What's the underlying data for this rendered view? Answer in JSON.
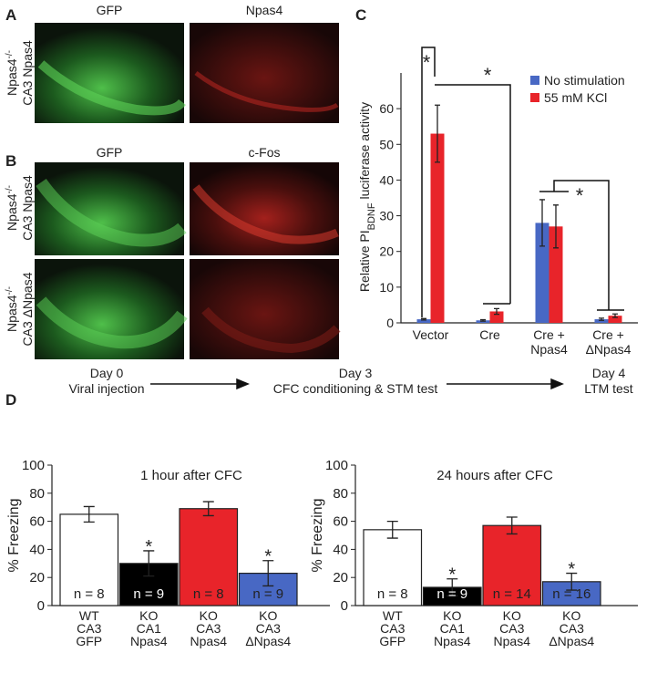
{
  "panel_labels": [
    "A",
    "B",
    "C",
    "D"
  ],
  "images": {
    "a_headers": [
      "GFP",
      "Npas4"
    ],
    "b_headers": [
      "GFP",
      "c-Fos"
    ],
    "rows": [
      {
        "line1": "Npas4",
        "sup": "-/-",
        "line2": "CA3 Npas4"
      },
      {
        "line1": "Npas4",
        "sup": "-/-",
        "line2": "CA3 Npas4"
      },
      {
        "line1": "Npas4",
        "sup": "-/-",
        "line2": "CA3 ΔNpas4"
      }
    ]
  },
  "timeline": [
    {
      "day": "Day 0",
      "event": "Viral injection"
    },
    {
      "day": "Day 3",
      "event": "CFC conditioning & STM test"
    },
    {
      "day": "Day 4",
      "event": "LTM test"
    }
  ],
  "chart_data": [
    {
      "type": "grouped_bar",
      "ylabel": [
        "Relative PI",
        "BDNF",
        " luciferase activity"
      ],
      "categories": [
        "Vector",
        "Cre",
        "Cre +\nNpas4",
        "Cre +\nΔNpas4"
      ],
      "series": [
        {
          "name": "No stimulation",
          "color": "#4868c4",
          "values": [
            1,
            0.7,
            28,
            1
          ],
          "errors": [
            0.2,
            0.2,
            6.5,
            0.3
          ]
        },
        {
          "name": "55 mM KCl",
          "color": "#e8242a",
          "values": [
            53,
            3.2,
            27,
            2
          ],
          "errors": [
            8,
            0.8,
            6,
            0.5
          ]
        }
      ],
      "annotations": [
        "*",
        "*",
        "*"
      ],
      "ylim": [
        0,
        70
      ],
      "yticks": [
        0,
        10,
        20,
        30,
        40,
        50,
        60
      ],
      "legend": "top-right"
    },
    {
      "type": "bar",
      "title": "1 hour after CFC",
      "ylabel": "% Freezing",
      "categories": [
        "WT\nCA3\nGFP",
        "KO\nCA1\nNpas4",
        "KO\nCA3\nNpas4",
        "KO\nCA3\nΔNpas4"
      ],
      "values": [
        65,
        30,
        69,
        23
      ],
      "errors": [
        5.5,
        9,
        5,
        9
      ],
      "colors": [
        "#ffffff",
        "#000000",
        "#e8242a",
        "#4868c4"
      ],
      "n_labels": [
        "n = 8",
        "n = 9",
        "n = 8",
        "n = 9"
      ],
      "sig_labels": [
        null,
        "*",
        null,
        "*"
      ],
      "ylim": [
        0,
        100
      ],
      "yticks": [
        0,
        20,
        40,
        60,
        80,
        100
      ]
    },
    {
      "type": "bar",
      "title": "24 hours after CFC",
      "ylabel": "% Freezing",
      "categories": [
        "WT\nCA3\nGFP",
        "KO\nCA1\nNpas4",
        "KO\nCA3\nNpas4",
        "KO\nCA3\nΔNpas4"
      ],
      "values": [
        54,
        13,
        57,
        17
      ],
      "errors": [
        6,
        6,
        6,
        6
      ],
      "colors": [
        "#ffffff",
        "#000000",
        "#e8242a",
        "#4868c4"
      ],
      "n_labels": [
        "n = 8",
        "n = 9",
        "n = 14",
        "n = 16"
      ],
      "sig_labels": [
        null,
        "*",
        null,
        "*"
      ],
      "ylim": [
        0,
        100
      ],
      "yticks": [
        0,
        20,
        40,
        60,
        80,
        100
      ]
    }
  ]
}
